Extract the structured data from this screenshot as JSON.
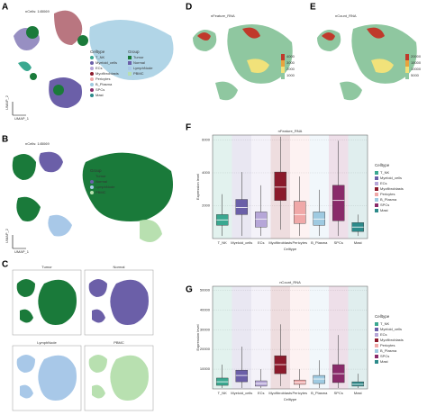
{
  "panels": {
    "A": {
      "label": "A",
      "title": "nCells: 145069",
      "x_axis": "UMAP_1",
      "y_axis": "UMAP_2",
      "legend_title": "Celltype",
      "legend": [
        "T_NK",
        "Myeloid_cells",
        "ECs",
        "Myofibroblasts",
        "Pericytes",
        "B_Plasma",
        "SPCs",
        "Mast"
      ],
      "legend_colors": [
        "#3aa890",
        "#6b5fa8",
        "#b6a6d8",
        "#8b1a2b",
        "#f0a8a8",
        "#9ecae1",
        "#8a2a6a",
        "#2c8a8a"
      ],
      "group_title": "Group",
      "groups": [
        "Tumor",
        "Normal",
        "LymphNode",
        "PBMC"
      ],
      "group_colors": [
        "#1a7a3a",
        "#6b5fa8",
        "#a8c8e8",
        "#b8e0b0"
      ]
    },
    "B": {
      "label": "B",
      "title": "nCells: 145069",
      "x_axis": "UMAP_1",
      "y_axis": "UMAP_2",
      "group_title": "Group"
    },
    "C": {
      "label": "C",
      "titles": [
        "Tumor",
        "Normal",
        "LymphNode",
        "PBMC"
      ]
    },
    "D": {
      "label": "D",
      "title": "nFeature_RNA",
      "colorbar": [
        "4000",
        "3000",
        "2000",
        "1000"
      ]
    },
    "E": {
      "label": "E",
      "title": "nCount_RNA",
      "colorbar": [
        "20000",
        "15000",
        "10000",
        "5000"
      ]
    }
  },
  "chart_data": [
    {
      "type": "box",
      "panel": "F",
      "title": "nFeature_RNA",
      "x_label": "Celltype",
      "y_label": "Expression level",
      "legend_title": "Celltype",
      "categories": [
        "T_NK",
        "Myeloid_cells",
        "ECs",
        "Myofibroblasts",
        "Pericytes",
        "B_Plasma",
        "SPCs",
        "Mast"
      ],
      "colors": [
        "#3aa890",
        "#6b5fa8",
        "#b6a6d8",
        "#8b1a2b",
        "#f0a8a8",
        "#9ecae1",
        "#8a2a6a",
        "#2c8a8a"
      ],
      "whislo": [
        160,
        160,
        160,
        540,
        160,
        160,
        160,
        160
      ],
      "q1": [
        810,
        1460,
        700,
        2320,
        920,
        810,
        1080,
        430
      ],
      "median": [
        1135,
        1890,
        1190,
        3130,
        1460,
        1190,
        2320,
        700
      ],
      "q3": [
        1460,
        2380,
        1620,
        4050,
        2270,
        1620,
        3240,
        970
      ],
      "whishi": [
        2700,
        4050,
        3240,
        6200,
        3780,
        2970,
        5950,
        1460
      ],
      "ylim": [
        0,
        6300
      ],
      "yticks": [
        2000,
        4000,
        6000
      ],
      "grid": true
    },
    {
      "type": "box",
      "panel": "G",
      "title": "nCount_RNA",
      "x_label": "Celltype",
      "y_label": "Expression level",
      "legend_title": "Celltype",
      "categories": [
        "T_NK",
        "Myeloid_cells",
        "ECs",
        "Myofibroblasts",
        "Pericytes",
        "B_Plasma",
        "SPCs",
        "Mast"
      ],
      "colors": [
        "#3aa890",
        "#6b5fa8",
        "#b6a6d8",
        "#8b1a2b",
        "#f0a8a8",
        "#9ecae1",
        "#8a2a6a",
        "#2c8a8a"
      ],
      "whislo": [
        450,
        450,
        450,
        1400,
        450,
        450,
        450,
        450
      ],
      "q1": [
        1800,
        3600,
        1400,
        7700,
        2300,
        2700,
        3200,
        1400
      ],
      "median": [
        3600,
        6800,
        2700,
        12300,
        3200,
        5000,
        7700,
        2300
      ],
      "q3": [
        5500,
        9500,
        4100,
        16800,
        4500,
        6800,
        12300,
        3600
      ],
      "whishi": [
        12300,
        21400,
        10000,
        32700,
        10000,
        14500,
        27300,
        7700
      ],
      "ylim": [
        0,
        52000
      ],
      "yticks": [
        10000,
        20000,
        30000,
        40000,
        50000
      ],
      "grid": true
    }
  ]
}
